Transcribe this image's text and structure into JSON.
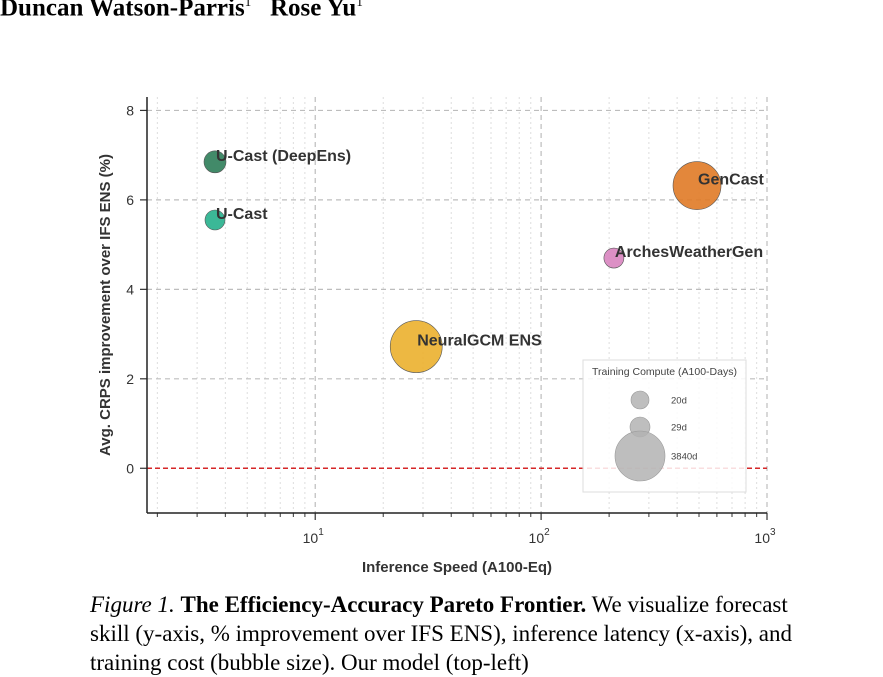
{
  "header": {
    "author1": "Duncan Watson-Parris",
    "author1_mark": "1",
    "author2": "Rose Yu",
    "author2_mark": "1"
  },
  "chart_data": {
    "type": "scatter",
    "title": "",
    "xlabel": "Inference Speed (A100-Eq)",
    "ylabel": "Avg. CRPS improvement over IFS ENS (%)",
    "xscale": "log",
    "xlim": [
      1.8,
      1000
    ],
    "ylim": [
      -1,
      8.3
    ],
    "grid": true,
    "yticks": [
      {
        "value": 0,
        "label": "0"
      },
      {
        "value": 2,
        "label": "2"
      },
      {
        "value": 4,
        "label": "4"
      },
      {
        "value": 6,
        "label": "6"
      },
      {
        "value": 8,
        "label": "8"
      }
    ],
    "xticks": [
      {
        "value": 10,
        "base": "10",
        "exp": "1"
      },
      {
        "value": 100,
        "base": "10",
        "exp": "2"
      },
      {
        "value": 1000,
        "base": "10",
        "exp": "3"
      }
    ],
    "reference_line": {
      "y": 0,
      "color": "#d62728"
    },
    "points": [
      {
        "name": "U-Cast (DeepEns)",
        "x": 3.6,
        "y": 6.85,
        "color": "#2e7d59"
      },
      {
        "name": "U-Cast",
        "x": 3.6,
        "y": 5.55,
        "color": "#26b08c"
      },
      {
        "name": "GenCast",
        "x": 490,
        "y": 6.32,
        "color": "#e07a26"
      },
      {
        "name": "ArchesWeatherGen",
        "x": 210,
        "y": 4.7,
        "color": "#d884bf"
      },
      {
        "name": "NeuralGCM ENS",
        "x": 28,
        "y": 2.72,
        "color": "#ebb02d"
      }
    ],
    "legend": {
      "title": "Training Compute (A100-Days)",
      "placement": "lower-right",
      "entries": [
        {
          "label": "20d"
        },
        {
          "label": "29d"
        },
        {
          "label": "3840d"
        }
      ]
    }
  },
  "caption": {
    "figure_label": "Figure 1.",
    "title": "The Efficiency-Accuracy Pareto Frontier.",
    "text": "We visualize forecast skill (y-axis, % improvement over IFS ENS), inference latency (x-axis), and training cost (bubble size). Our model (top-left)"
  }
}
